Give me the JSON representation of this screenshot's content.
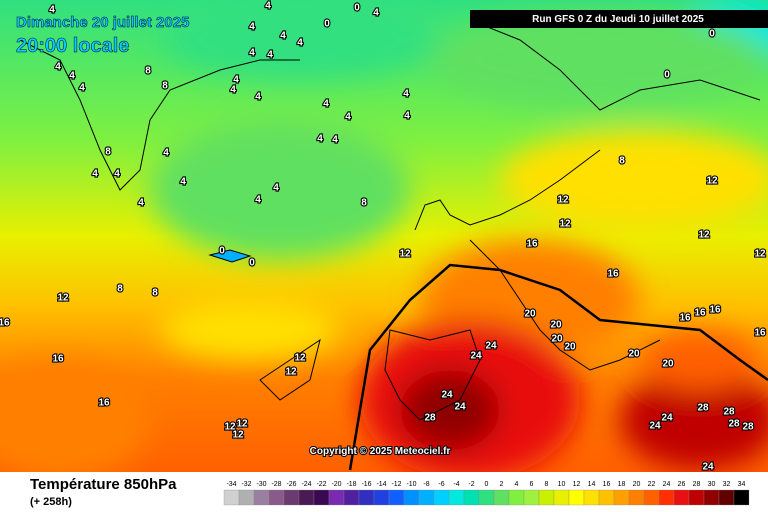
{
  "header": {
    "date": "Dimanche 20 juillet 2025",
    "time": "20:00 locale",
    "run": "Run GFS 0 Z du Jeudi 10 juillet 2025",
    "copyright": "Copyright © 2025 Meteociel.fr"
  },
  "footer": {
    "variable": "Température 850hPa",
    "lead_time": "(+ 258h)"
  },
  "map": {
    "contour_labels": [
      4,
      4,
      4,
      4,
      4,
      4,
      4,
      0,
      0,
      0,
      0,
      8,
      8,
      4,
      4,
      4,
      4,
      4,
      4,
      4,
      4,
      4,
      4,
      4,
      4,
      4,
      4,
      8,
      4,
      4,
      4,
      4,
      4,
      4,
      8,
      8,
      12,
      12,
      12,
      12,
      12,
      12,
      0,
      0,
      16,
      16,
      16,
      16,
      16,
      16,
      16,
      16,
      12,
      12,
      12,
      12,
      12,
      12,
      8,
      8,
      20,
      20,
      20,
      20,
      20,
      20,
      24,
      24,
      24,
      24,
      28,
      28,
      28,
      28,
      28,
      24,
      24,
      24,
      16
    ]
  },
  "colorbar": {
    "labels": [
      -34,
      -32,
      -30,
      -28,
      -26,
      -24,
      -22,
      -20,
      -18,
      -16,
      -14,
      -12,
      -10,
      -8,
      -6,
      -4,
      -2,
      0,
      2,
      4,
      6,
      8,
      10,
      12,
      14,
      16,
      18,
      20,
      22,
      24,
      26,
      28,
      30,
      32,
      34
    ],
    "colors": [
      "#d0d0d0",
      "#b0b0b0",
      "#9a7fa0",
      "#8a5a8a",
      "#6a3a70",
      "#4a1a55",
      "#3a0a50",
      "#7a2ab0",
      "#5020a0",
      "#3030c0",
      "#2040e0",
      "#1060ff",
      "#0090ff",
      "#00b0ff",
      "#00d0ff",
      "#00e8e0",
      "#00e0b0",
      "#30e080",
      "#60e060",
      "#80f040",
      "#a0f040",
      "#c8f000",
      "#e8f000",
      "#ffff00",
      "#ffe000",
      "#ffc000",
      "#ffa000",
      "#ff8000",
      "#ff6000",
      "#ff3000",
      "#e81010",
      "#c00000",
      "#900000",
      "#600000",
      "#000000"
    ]
  }
}
